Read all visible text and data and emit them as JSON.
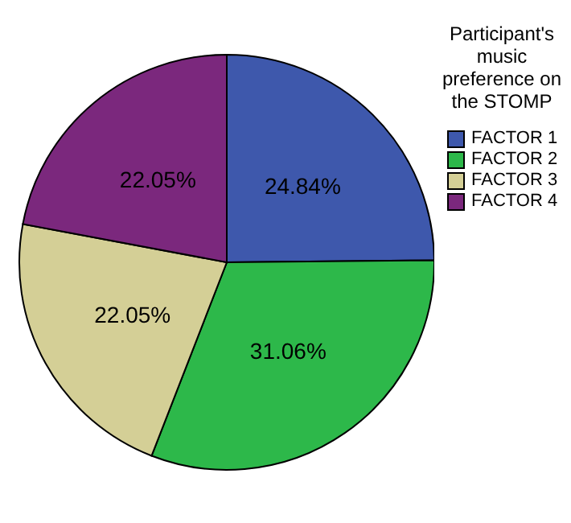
{
  "chart_data": {
    "type": "pie",
    "legend_title": "Participant's music preference on the STOMP",
    "legend": "right",
    "categories": [
      "FACTOR 1",
      "FACTOR 2",
      "FACTOR 3",
      "FACTOR 4"
    ],
    "values": [
      24.84,
      31.06,
      22.05,
      22.05
    ],
    "value_labels": [
      "24.84%",
      "31.06%",
      "22.05%",
      "22.05%"
    ],
    "colors": [
      "#3e58ac",
      "#2db84a",
      "#d4cf96",
      "#7b287d"
    ]
  }
}
